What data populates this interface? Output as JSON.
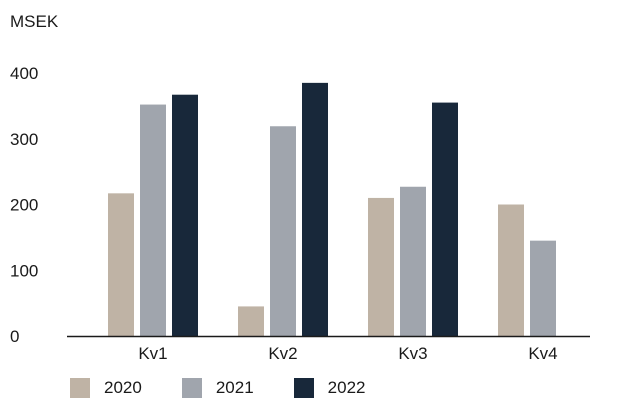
{
  "chart_data": {
    "type": "bar",
    "unit_label": "MSEK",
    "categories": [
      "Kv1",
      "Kv2",
      "Kv3",
      "Kv4"
    ],
    "series": [
      {
        "name": "2020",
        "color": "#bfb3a5",
        "values": [
          217,
          45,
          210,
          200
        ]
      },
      {
        "name": "2021",
        "color": "#a0a5ad",
        "values": [
          352,
          319,
          227,
          145
        ]
      },
      {
        "name": "2022",
        "color": "#18283a",
        "values": [
          367,
          385,
          355,
          null
        ]
      }
    ],
    "ylim": [
      0,
      400
    ],
    "yticks": [
      0,
      100,
      200,
      300,
      400
    ],
    "grid": false,
    "legend_position": "bottom-left"
  }
}
